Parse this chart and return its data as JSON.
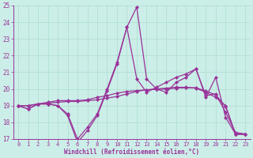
{
  "xlabel": "Windchill (Refroidissement éolien,°C)",
  "bg_color": "#cceee8",
  "grid_color": "#aaddcc",
  "line_color": "#993399",
  "ylim": [
    17,
    25
  ],
  "xlim": [
    -0.5,
    23.5
  ],
  "yticks": [
    17,
    18,
    19,
    20,
    21,
    22,
    23,
    24,
    25
  ],
  "xticks": [
    0,
    1,
    2,
    3,
    4,
    5,
    6,
    7,
    8,
    9,
    10,
    11,
    12,
    13,
    14,
    15,
    16,
    17,
    18,
    19,
    20,
    21,
    22,
    23
  ],
  "lines": [
    [
      19.0,
      18.8,
      19.1,
      19.1,
      19.0,
      18.4,
      16.8,
      17.5,
      18.4,
      19.9,
      21.5,
      23.7,
      24.9,
      20.6,
      20.0,
      19.8,
      20.4,
      20.7,
      21.2,
      19.5,
      20.7,
      18.3,
      17.3,
      17.3
    ],
    [
      19.0,
      18.8,
      19.1,
      19.1,
      19.0,
      18.5,
      17.0,
      17.7,
      18.5,
      20.0,
      21.6,
      23.7,
      20.6,
      19.8,
      20.1,
      20.4,
      20.7,
      20.9,
      21.2,
      19.6,
      19.7,
      18.6,
      17.4,
      17.3
    ],
    [
      19.0,
      19.0,
      19.1,
      19.2,
      19.3,
      19.3,
      19.3,
      19.35,
      19.5,
      19.6,
      19.75,
      19.85,
      19.9,
      19.95,
      20.0,
      20.05,
      20.1,
      20.1,
      20.05,
      19.8,
      19.5,
      19.0,
      17.3,
      17.3
    ],
    [
      19.0,
      19.0,
      19.1,
      19.15,
      19.2,
      19.25,
      19.25,
      19.3,
      19.35,
      19.45,
      19.55,
      19.7,
      19.85,
      19.95,
      19.97,
      20.0,
      20.05,
      20.07,
      20.07,
      19.88,
      19.65,
      18.95,
      17.28,
      17.28
    ]
  ]
}
